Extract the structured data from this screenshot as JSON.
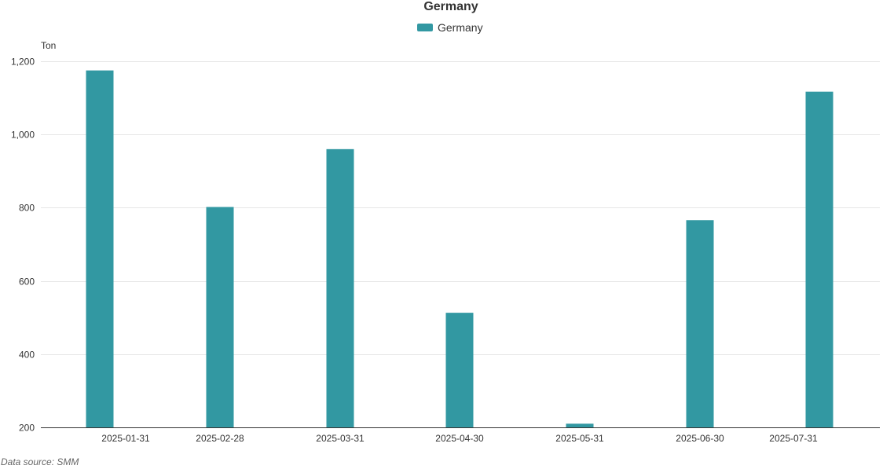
{
  "chart_data": {
    "type": "bar",
    "title": "Germany",
    "ylabel": "Ton",
    "categories": [
      "2025-01-31",
      "2025-02-28",
      "2025-03-31",
      "2025-04-30",
      "2025-05-31",
      "2025-06-30",
      "2025-07-31"
    ],
    "series": [
      {
        "name": "Germany",
        "values": [
          1175,
          802,
          960,
          513,
          210,
          766,
          1117
        ]
      }
    ],
    "ylim": [
      200,
      1200
    ],
    "yticks": [
      200,
      400,
      600,
      800,
      1000,
      1200
    ],
    "ytick_labels": [
      "200",
      "400",
      "600",
      "800",
      "1,000",
      "1,200"
    ],
    "grid": true,
    "legend": "top-center",
    "colors": {
      "bar": "#3298a2"
    }
  },
  "footer": {
    "source_label": "Data source:  SMM"
  }
}
